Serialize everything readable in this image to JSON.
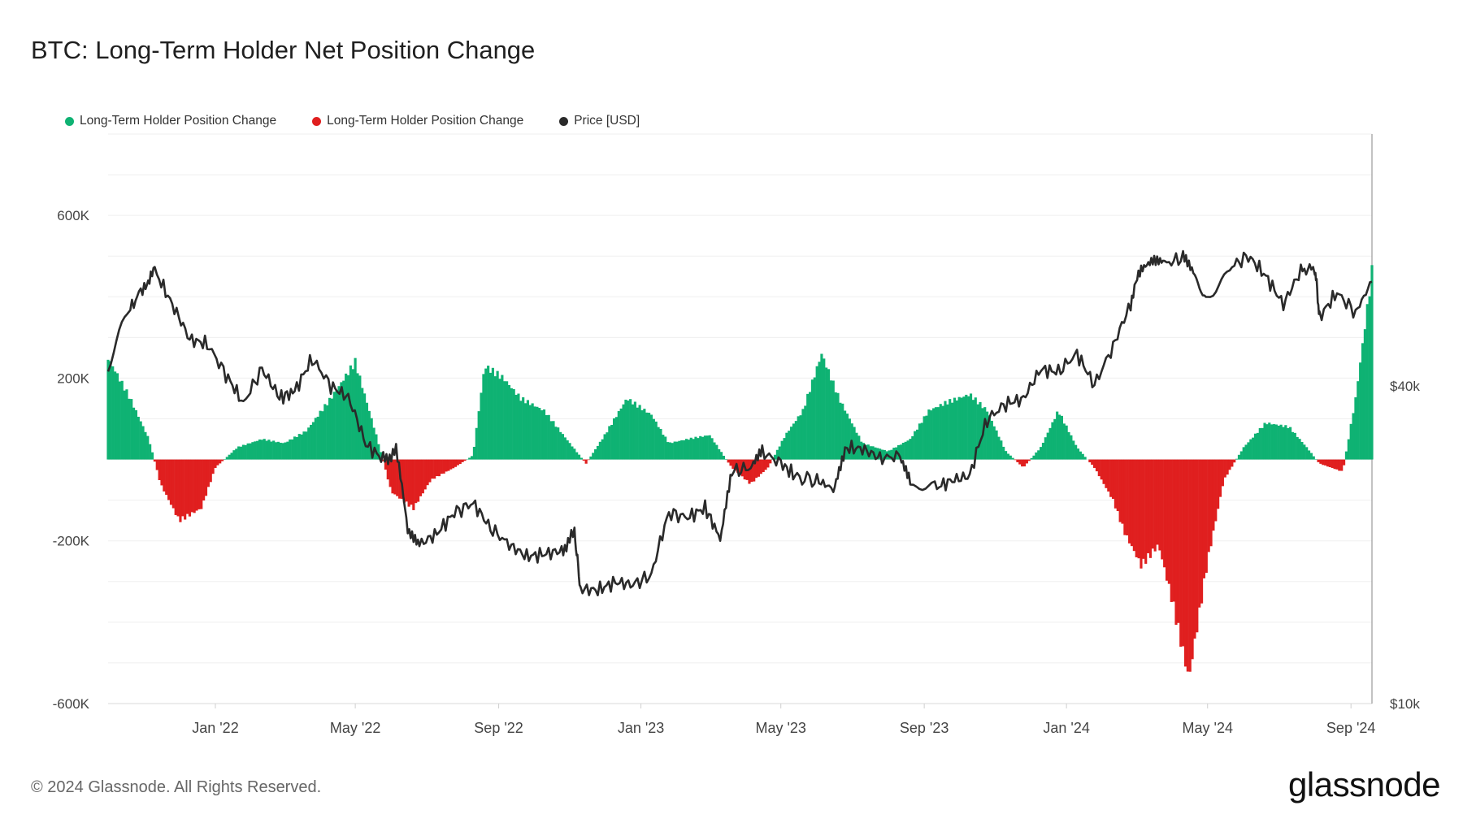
{
  "chart_data": {
    "type": "bar+line",
    "title": "BTC: Long-Term Holder Net Position Change",
    "legend": [
      {
        "name": "Long-Term Holder Position Change",
        "color": "#0fb273"
      },
      {
        "name": "Long-Term Holder Position Change",
        "color": "#e01f1f"
      },
      {
        "name": "Price [USD]",
        "color": "#2a2a2a"
      }
    ],
    "x_ticks": [
      "Jan '22",
      "May '22",
      "Sep '22",
      "Jan '23",
      "May '23",
      "Sep '23",
      "Jan '24",
      "May '24",
      "Sep '24"
    ],
    "x_tick_dates": [
      "2022-01-01",
      "2022-05-01",
      "2022-09-01",
      "2023-01-01",
      "2023-05-01",
      "2023-09-01",
      "2024-01-01",
      "2024-05-01",
      "2024-09-01"
    ],
    "x_range": [
      "2021-10-01",
      "2024-09-19"
    ],
    "y_left": {
      "ticks": [
        "600K",
        "200K",
        "-200K",
        "-600K"
      ],
      "tick_values": [
        600000,
        200000,
        -200000,
        -600000
      ],
      "range": [
        -600000,
        800000
      ]
    },
    "y_right": {
      "scale": "log",
      "ticks": [
        "$40k",
        "$10k"
      ],
      "tick_values": [
        40000,
        10000
      ],
      "range": [
        10000,
        120000
      ]
    },
    "position_change": {
      "x": [
        "2021-10-01",
        "2021-10-20",
        "2021-11-05",
        "2021-11-15",
        "2021-12-01",
        "2021-12-20",
        "2022-01-01",
        "2022-01-20",
        "2022-02-10",
        "2022-03-01",
        "2022-03-20",
        "2022-04-10",
        "2022-05-01",
        "2022-05-20",
        "2022-06-01",
        "2022-06-20",
        "2022-07-05",
        "2022-07-25",
        "2022-08-10",
        "2022-08-20",
        "2022-09-05",
        "2022-09-20",
        "2022-10-10",
        "2022-11-01",
        "2022-11-15",
        "2022-12-01",
        "2022-12-20",
        "2023-01-10",
        "2023-01-25",
        "2023-02-10",
        "2023-03-01",
        "2023-03-20",
        "2023-04-05",
        "2023-04-20",
        "2023-05-05",
        "2023-05-20",
        "2023-06-05",
        "2023-06-20",
        "2023-07-10",
        "2023-08-01",
        "2023-08-20",
        "2023-09-05",
        "2023-09-20",
        "2023-10-10",
        "2023-10-25",
        "2023-11-10",
        "2023-11-25",
        "2023-12-10",
        "2023-12-25",
        "2024-01-10",
        "2024-01-25",
        "2024-02-10",
        "2024-02-20",
        "2024-03-05",
        "2024-03-20",
        "2024-04-01",
        "2024-04-15",
        "2024-05-01",
        "2024-05-15",
        "2024-06-01",
        "2024-06-20",
        "2024-07-10",
        "2024-07-25",
        "2024-08-05",
        "2024-08-25",
        "2024-09-05",
        "2024-09-19"
      ],
      "values": [
        250000,
        150000,
        50000,
        -60000,
        -150000,
        -120000,
        -20000,
        30000,
        50000,
        40000,
        70000,
        150000,
        240000,
        50000,
        -80000,
        -120000,
        -50000,
        -20000,
        10000,
        230000,
        200000,
        150000,
        120000,
        40000,
        -10000,
        60000,
        150000,
        110000,
        40000,
        50000,
        60000,
        -20000,
        -60000,
        -20000,
        60000,
        120000,
        260000,
        150000,
        40000,
        20000,
        50000,
        120000,
        140000,
        160000,
        120000,
        20000,
        -20000,
        30000,
        120000,
        30000,
        -20000,
        -100000,
        -180000,
        -260000,
        -210000,
        -350000,
        -540000,
        -250000,
        -50000,
        30000,
        90000,
        80000,
        30000,
        -10000,
        -30000,
        150000,
        460000
      ]
    },
    "price_usd": {
      "x": [
        "2021-10-01",
        "2021-10-20",
        "2021-11-01",
        "2021-11-10",
        "2021-11-25",
        "2021-12-10",
        "2021-12-25",
        "2022-01-10",
        "2022-01-25",
        "2022-02-10",
        "2022-02-25",
        "2022-03-10",
        "2022-03-25",
        "2022-04-10",
        "2022-04-25",
        "2022-05-10",
        "2022-05-25",
        "2022-06-05",
        "2022-06-15",
        "2022-06-25",
        "2022-07-10",
        "2022-07-25",
        "2022-08-10",
        "2022-08-25",
        "2022-09-10",
        "2022-09-25",
        "2022-10-10",
        "2022-10-25",
        "2022-11-05",
        "2022-11-10",
        "2022-11-25",
        "2022-12-10",
        "2022-12-25",
        "2023-01-10",
        "2023-01-25",
        "2023-02-10",
        "2023-02-25",
        "2023-03-10",
        "2023-03-20",
        "2023-04-05",
        "2023-04-15",
        "2023-05-01",
        "2023-05-15",
        "2023-06-01",
        "2023-06-15",
        "2023-06-25",
        "2023-07-10",
        "2023-07-25",
        "2023-08-10",
        "2023-08-20",
        "2023-09-10",
        "2023-09-25",
        "2023-10-10",
        "2023-10-25",
        "2023-11-10",
        "2023-11-25",
        "2023-12-10",
        "2023-12-25",
        "2024-01-10",
        "2024-01-25",
        "2024-02-10",
        "2024-02-25",
        "2024-03-05",
        "2024-03-15",
        "2024-03-25",
        "2024-04-10",
        "2024-04-20",
        "2024-05-01",
        "2024-05-20",
        "2024-06-05",
        "2024-06-20",
        "2024-07-05",
        "2024-07-20",
        "2024-08-01",
        "2024-08-05",
        "2024-08-20",
        "2024-09-05",
        "2024-09-19"
      ],
      "values": [
        44000,
        56000,
        62000,
        66000,
        57000,
        49000,
        48000,
        42000,
        37000,
        43000,
        38000,
        39000,
        45000,
        40000,
        38000,
        31000,
        29000,
        30000,
        21000,
        20000,
        21000,
        23000,
        24000,
        21500,
        20000,
        19000,
        19200,
        19500,
        21000,
        16500,
        16400,
        17000,
        16800,
        17500,
        23000,
        22500,
        23500,
        20500,
        27500,
        28000,
        30000,
        28500,
        26800,
        26500,
        25500,
        30500,
        30400,
        29200,
        29400,
        26100,
        25600,
        26500,
        27000,
        34500,
        37000,
        37800,
        43000,
        42500,
        46000,
        40000,
        47500,
        57000,
        67000,
        69000,
        68000,
        70000,
        64000,
        58000,
        67000,
        70500,
        64500,
        57000,
        66000,
        67000,
        54000,
        60000,
        55000,
        63000
      ]
    }
  },
  "footer": {
    "copyright": "© 2024 Glassnode. All Rights Reserved.",
    "brand": "glassnode"
  }
}
